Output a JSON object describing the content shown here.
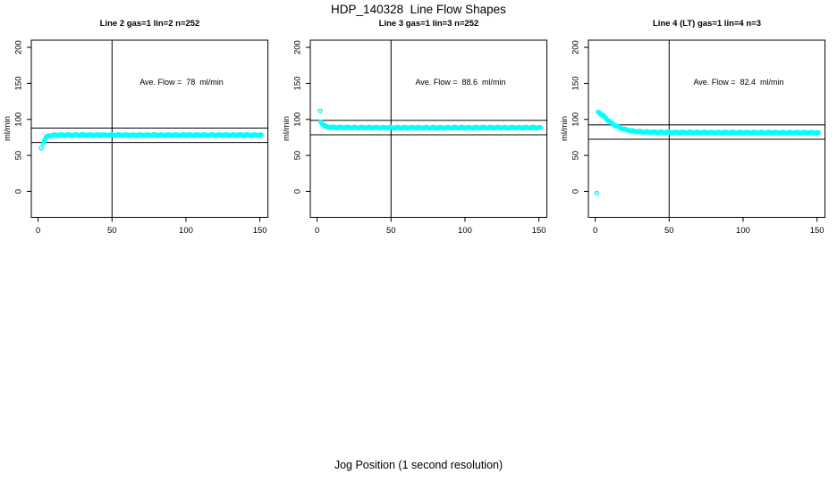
{
  "page": {
    "main_title": "HDP_140328  Line Flow Shapes",
    "x_axis_label": "Jog Position (1 second resolution)"
  },
  "chart_data": {
    "type": "scatter",
    "layout": "1 row x 3 panels",
    "title": "HDP_140328  Line Flow Shapes",
    "xlabel": "Jog Position (1 second resolution)",
    "ylabel": "ml/min",
    "point_color": "#00ffff",
    "line_color": "#000000",
    "x_ticks": [
      0,
      50,
      100,
      150
    ],
    "y_ticks": [
      0,
      50,
      100,
      150,
      200
    ],
    "xlim": [
      -4.6,
      155.4
    ],
    "ylim": [
      -36,
      210
    ],
    "vline_x": 50,
    "grid": "off",
    "panels": [
      {
        "title": "Line 2 gas=1 lin=2 n=252",
        "annotation": "Ave. Flow =  78  ml/min",
        "ave_flow": 78,
        "hlines": [
          68,
          88
        ],
        "outliers": [
          [
            2,
            60
          ]
        ],
        "profile": [
          [
            3.5,
            67
          ],
          [
            4,
            70
          ],
          [
            5,
            74
          ],
          [
            6,
            76
          ],
          [
            7,
            77
          ],
          [
            8,
            77.5
          ],
          [
            10,
            78
          ],
          [
            15,
            78.3
          ],
          [
            25,
            78.3
          ],
          [
            40,
            78.3
          ],
          [
            60,
            78.2
          ],
          [
            80,
            78.2
          ],
          [
            100,
            78.3
          ],
          [
            125,
            78.3
          ],
          [
            151,
            78.3
          ]
        ]
      },
      {
        "title": "Line 3 gas=1 lin=3 n=252",
        "annotation": "Ave. Flow =  88.6  ml/min",
        "ave_flow": 88.6,
        "hlines": [
          78.6,
          98.6
        ],
        "outliers": [
          [
            2,
            112
          ]
        ],
        "profile": [
          [
            2.5,
            97
          ],
          [
            3,
            95
          ],
          [
            4,
            93
          ],
          [
            5,
            91
          ],
          [
            6,
            90
          ],
          [
            8,
            89.2
          ],
          [
            10,
            89
          ],
          [
            15,
            88.8
          ],
          [
            25,
            88.7
          ],
          [
            40,
            88.6
          ],
          [
            60,
            88.5
          ],
          [
            80,
            88.5
          ],
          [
            100,
            88.6
          ],
          [
            125,
            88.6
          ],
          [
            151,
            88.6
          ]
        ]
      },
      {
        "title": "Line 4 (LT) gas=1 lin=4 n=3",
        "annotation": "Ave. Flow =  82.4  ml/min",
        "ave_flow": 82.4,
        "hlines": [
          72.4,
          92.4
        ],
        "outliers": [
          [
            1,
            -2
          ]
        ],
        "profile": [
          [
            2,
            110
          ],
          [
            3,
            109
          ],
          [
            4,
            107.5
          ],
          [
            5,
            106
          ],
          [
            6,
            104
          ],
          [
            7,
            102
          ],
          [
            8,
            100
          ],
          [
            9,
            98.2
          ],
          [
            10,
            96.5
          ],
          [
            12,
            93.5
          ],
          [
            14,
            91
          ],
          [
            16,
            89
          ],
          [
            18,
            87.3
          ],
          [
            20,
            86
          ],
          [
            22,
            85
          ],
          [
            25,
            84
          ],
          [
            28,
            83.2
          ],
          [
            32,
            82.7
          ],
          [
            36,
            82.4
          ],
          [
            40,
            82.2
          ],
          [
            50,
            82
          ],
          [
            65,
            81.9
          ],
          [
            80,
            81.8
          ],
          [
            100,
            81.7
          ],
          [
            120,
            81.6
          ],
          [
            135,
            81.6
          ],
          [
            151,
            81.5
          ]
        ]
      }
    ]
  }
}
